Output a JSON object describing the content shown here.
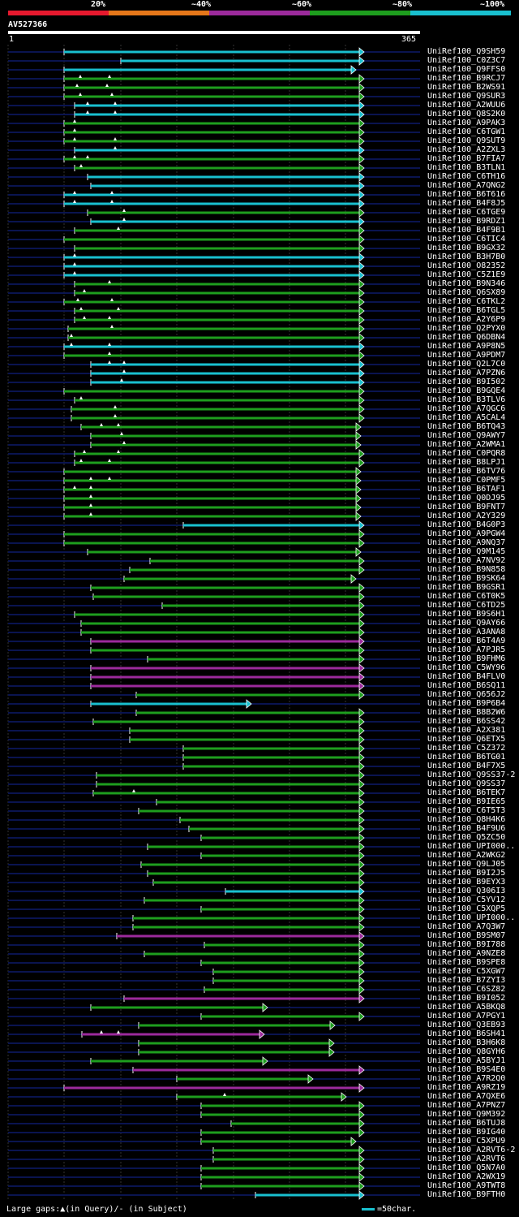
{
  "legend": [
    {
      "label": "20%",
      "color": "#e6192e"
    },
    {
      "label": "~40%",
      "color": "#e5771a"
    },
    {
      "label": "~60%",
      "color": "#9c2a9c"
    },
    {
      "label": "~80%",
      "color": "#1e9e1e"
    },
    {
      "label": "~100%",
      "color": "#19c0cf"
    }
  ],
  "query": {
    "name": "AV527366",
    "start": "1",
    "end": "365",
    "length": 365
  },
  "colors": {
    "cyan": "#19c0cf",
    "green": "#1e9e1e",
    "magenta": "#9c2a9c",
    "track": "#0a1450",
    "grid": "#333"
  },
  "footer": {
    "gaps": "Large gaps:▲(in Query)/- (in Subject)",
    "scale": "=50char."
  },
  "hits": [
    {
      "id": "UniRef100_Q9SH59",
      "start": 79,
      "end": 449,
      "color": "cyan",
      "arrow": true
    },
    {
      "id": "UniRef100_C0Z3C7",
      "start": 149,
      "end": 449,
      "color": "cyan",
      "arrow": true
    },
    {
      "id": "UniRef100_Q9FFS0",
      "start": 79,
      "end": 439,
      "color": "cyan",
      "arrow": true
    },
    {
      "id": "UniRef100_B9RCJ7",
      "start": 79,
      "end": 449,
      "color": "green",
      "arrow": true,
      "marks": [
        99,
        135
      ]
    },
    {
      "id": "UniRef100_B2WS91",
      "start": 79,
      "end": 449,
      "color": "green",
      "arrow": true,
      "marks": [
        95,
        132
      ]
    },
    {
      "id": "UniRef100_Q9SUR3",
      "start": 79,
      "end": 449,
      "color": "green",
      "arrow": true,
      "marks": [
        99,
        138
      ]
    },
    {
      "id": "UniRef100_A2WUU6",
      "start": 92,
      "end": 449,
      "color": "cyan",
      "arrow": true,
      "marks": [
        108,
        142
      ]
    },
    {
      "id": "UniRef100_Q8S2K0",
      "start": 92,
      "end": 449,
      "color": "cyan",
      "arrow": true,
      "marks": [
        108,
        142
      ]
    },
    {
      "id": "UniRef100_A9PAK3",
      "start": 79,
      "end": 449,
      "color": "green",
      "arrow": true,
      "marks": [
        92
      ]
    },
    {
      "id": "UniRef100_C6TGW1",
      "start": 79,
      "end": 449,
      "color": "green",
      "arrow": true,
      "marks": [
        92
      ]
    },
    {
      "id": "UniRef100_Q9SUT9",
      "start": 79,
      "end": 449,
      "color": "green",
      "arrow": true,
      "marks": [
        92,
        142
      ]
    },
    {
      "id": "UniRef100_A2ZXL3",
      "start": 92,
      "end": 449,
      "color": "cyan",
      "arrow": true,
      "marks": [
        142
      ]
    },
    {
      "id": "UniRef100_B7FIA7",
      "start": 79,
      "end": 449,
      "color": "green",
      "arrow": true,
      "marks": [
        92,
        108
      ]
    },
    {
      "id": "UniRef100_B3TLN1",
      "start": 92,
      "end": 449,
      "color": "green",
      "arrow": true,
      "marks": [
        100
      ]
    },
    {
      "id": "UniRef100_C6TH16",
      "start": 108,
      "end": 449,
      "color": "cyan",
      "arrow": true
    },
    {
      "id": "UniRef100_A7QNG2",
      "start": 112,
      "end": 449,
      "color": "cyan",
      "arrow": true
    },
    {
      "id": "UniRef100_B6T616",
      "start": 79,
      "end": 449,
      "color": "cyan",
      "arrow": true,
      "marks": [
        92,
        138
      ]
    },
    {
      "id": "UniRef100_B4F8J5",
      "start": 79,
      "end": 449,
      "color": "cyan",
      "arrow": true,
      "marks": [
        92,
        138
      ]
    },
    {
      "id": "UniRef100_C6TGE9",
      "start": 108,
      "end": 449,
      "color": "green",
      "arrow": true,
      "marks": [
        153
      ]
    },
    {
      "id": "UniRef100_B9RDZ1",
      "start": 112,
      "end": 449,
      "color": "cyan",
      "arrow": true,
      "marks": [
        153
      ]
    },
    {
      "id": "UniRef100_B4F9B1",
      "start": 92,
      "end": 449,
      "color": "green",
      "arrow": true,
      "marks": [
        146
      ]
    },
    {
      "id": "UniRef100_C6TIC4",
      "start": 79,
      "end": 449,
      "color": "green",
      "arrow": true
    },
    {
      "id": "UniRef100_B9GX32",
      "start": 92,
      "end": 449,
      "color": "green",
      "arrow": true
    },
    {
      "id": "UniRef100_B3H7B0",
      "start": 79,
      "end": 449,
      "color": "cyan",
      "arrow": true,
      "marks": [
        92
      ]
    },
    {
      "id": "UniRef100_O82352",
      "start": 79,
      "end": 449,
      "color": "cyan",
      "arrow": true,
      "marks": [
        92
      ]
    },
    {
      "id": "UniRef100_C5Z1E9",
      "start": 79,
      "end": 449,
      "color": "cyan",
      "arrow": true,
      "marks": [
        92
      ]
    },
    {
      "id": "UniRef100_B9N346",
      "start": 92,
      "end": 449,
      "color": "green",
      "arrow": true,
      "marks": [
        135
      ]
    },
    {
      "id": "UniRef100_Q6SX89",
      "start": 92,
      "end": 449,
      "color": "green",
      "arrow": true,
      "marks": [
        104
      ]
    },
    {
      "id": "UniRef100_C6TKL2",
      "start": 79,
      "end": 449,
      "color": "green",
      "arrow": true,
      "marks": [
        96,
        138
      ]
    },
    {
      "id": "UniRef100_B6TGL5",
      "start": 92,
      "end": 449,
      "color": "green",
      "arrow": true,
      "marks": [
        100,
        146
      ]
    },
    {
      "id": "UniRef100_A2Y6P9",
      "start": 92,
      "end": 449,
      "color": "green",
      "arrow": true,
      "marks": [
        104,
        135
      ]
    },
    {
      "id": "UniRef100_Q2PYX0",
      "start": 84,
      "end": 449,
      "color": "green",
      "arrow": true,
      "marks": [
        138
      ]
    },
    {
      "id": "UniRef100_Q6DBN4",
      "start": 84,
      "end": 449,
      "color": "green",
      "arrow": true,
      "marks": [
        88
      ]
    },
    {
      "id": "UniRef100_A9P8N5",
      "start": 79,
      "end": 449,
      "color": "cyan",
      "arrow": true,
      "marks": [
        88,
        135
      ]
    },
    {
      "id": "UniRef100_A9PDM7",
      "start": 79,
      "end": 449,
      "color": "green",
      "arrow": true,
      "marks": [
        135
      ]
    },
    {
      "id": "UniRef100_Q2L7C0",
      "start": 112,
      "end": 449,
      "color": "cyan",
      "arrow": true,
      "marks": [
        135,
        153
      ]
    },
    {
      "id": "UniRef100_A7PZN6",
      "start": 112,
      "end": 449,
      "color": "cyan",
      "arrow": true,
      "marks": [
        153
      ]
    },
    {
      "id": "UniRef100_B9I502",
      "start": 112,
      "end": 449,
      "color": "cyan",
      "arrow": true,
      "marks": [
        150
      ]
    },
    {
      "id": "UniRef100_B9GQE4",
      "start": 79,
      "end": 449,
      "color": "green",
      "arrow": true
    },
    {
      "id": "UniRef100_B3TLV6",
      "start": 92,
      "end": 449,
      "color": "green",
      "arrow": true,
      "marks": [
        100
      ]
    },
    {
      "id": "UniRef100_A7QGC6",
      "start": 88,
      "end": 449,
      "color": "green",
      "arrow": true,
      "marks": [
        142
      ]
    },
    {
      "id": "UniRef100_A5CAL4",
      "start": 88,
      "end": 449,
      "color": "green",
      "arrow": true,
      "marks": [
        142
      ]
    },
    {
      "id": "UniRef100_B6TQ43",
      "start": 100,
      "end": 445,
      "color": "green",
      "arrow": true,
      "marks": [
        125,
        146
      ]
    },
    {
      "id": "UniRef100_Q9AWY7",
      "start": 112,
      "end": 445,
      "color": "green",
      "arrow": true,
      "marks": [
        150
      ]
    },
    {
      "id": "UniRef100_A2WMA1",
      "start": 112,
      "end": 445,
      "color": "green",
      "arrow": true,
      "marks": [
        153
      ]
    },
    {
      "id": "UniRef100_C0PQR8",
      "start": 92,
      "end": 449,
      "color": "green",
      "arrow": true,
      "marks": [
        104,
        146
      ]
    },
    {
      "id": "UniRef100_B8LPJ1",
      "start": 92,
      "end": 449,
      "color": "green",
      "arrow": true,
      "marks": [
        100,
        135
      ]
    },
    {
      "id": "UniRef100_B6TV76",
      "start": 79,
      "end": 445,
      "color": "green",
      "arrow": true
    },
    {
      "id": "UniRef100_C0PMF5",
      "start": 79,
      "end": 445,
      "color": "green",
      "arrow": true,
      "marks": [
        112,
        135
      ]
    },
    {
      "id": "UniRef100_B6TAF1",
      "start": 79,
      "end": 445,
      "color": "green",
      "arrow": true,
      "marks": [
        92,
        112
      ]
    },
    {
      "id": "UniRef100_Q0DJ95",
      "start": 79,
      "end": 445,
      "color": "green",
      "arrow": true,
      "marks": [
        112
      ]
    },
    {
      "id": "UniRef100_B9FNT7",
      "start": 79,
      "end": 445,
      "color": "green",
      "arrow": true,
      "marks": [
        112
      ]
    },
    {
      "id": "UniRef100_A2Y329",
      "start": 79,
      "end": 445,
      "color": "green",
      "arrow": true,
      "marks": [
        112
      ]
    },
    {
      "id": "UniRef100_B4G0P3",
      "start": 226,
      "end": 449,
      "color": "cyan",
      "arrow": true
    },
    {
      "id": "UniRef100_A9PGW4",
      "start": 79,
      "end": 449,
      "color": "green",
      "arrow": true
    },
    {
      "id": "UniRef100_A9NQ37",
      "start": 79,
      "end": 449,
      "color": "green",
      "arrow": true
    },
    {
      "id": "UniRef100_Q9M145",
      "start": 108,
      "end": 445,
      "color": "green",
      "arrow": true
    },
    {
      "id": "UniRef100_A7NV92",
      "start": 185,
      "end": 449,
      "color": "green",
      "arrow": true
    },
    {
      "id": "UniRef100_B9N858",
      "start": 160,
      "end": 449,
      "color": "green",
      "arrow": true
    },
    {
      "id": "UniRef100_B9SK64",
      "start": 153,
      "end": 439,
      "color": "green",
      "arrow": true
    },
    {
      "id": "UniRef100_B9GSR1",
      "start": 112,
      "end": 449,
      "color": "green",
      "arrow": true
    },
    {
      "id": "UniRef100_C6T0K5",
      "start": 115,
      "end": 449,
      "color": "green",
      "arrow": true
    },
    {
      "id": "UniRef100_C6TD25",
      "start": 200,
      "end": 449,
      "color": "green",
      "arrow": true
    },
    {
      "id": "UniRef100_B9S6H1",
      "start": 92,
      "end": 449,
      "color": "green",
      "arrow": true
    },
    {
      "id": "UniRef100_Q9AY66",
      "start": 100,
      "end": 449,
      "color": "green",
      "arrow": true
    },
    {
      "id": "UniRef100_A3ANA8",
      "start": 100,
      "end": 449,
      "color": "green",
      "arrow": true
    },
    {
      "id": "UniRef100_B6T4A9",
      "start": 112,
      "end": 449,
      "color": "magenta",
      "arrow": true
    },
    {
      "id": "UniRef100_A7PJR5",
      "start": 112,
      "end": 449,
      "color": "green",
      "arrow": true
    },
    {
      "id": "UniRef100_B9FHM6",
      "start": 182,
      "end": 449,
      "color": "green",
      "arrow": true
    },
    {
      "id": "UniRef100_C5WY96",
      "start": 112,
      "end": 449,
      "color": "magenta",
      "arrow": true
    },
    {
      "id": "UniRef100_B4FLV0",
      "start": 112,
      "end": 449,
      "color": "magenta",
      "arrow": true
    },
    {
      "id": "UniRef100_B6SQ11",
      "start": 112,
      "end": 449,
      "color": "magenta",
      "arrow": true
    },
    {
      "id": "UniRef100_Q656J2",
      "start": 168,
      "end": 449,
      "color": "green",
      "arrow": true
    },
    {
      "id": "UniRef100_B9P6B4",
      "start": 112,
      "end": 310,
      "color": "cyan",
      "arrow": true
    },
    {
      "id": "UniRef100_B8B2W6",
      "start": 168,
      "end": 449,
      "color": "green",
      "arrow": true
    },
    {
      "id": "UniRef100_B6SS42",
      "start": 115,
      "end": 449,
      "color": "green",
      "arrow": true
    },
    {
      "id": "UniRef100_A2X381",
      "start": 160,
      "end": 449,
      "color": "green",
      "arrow": true
    },
    {
      "id": "UniRef100_Q6ETX5",
      "start": 160,
      "end": 449,
      "color": "green",
      "arrow": true
    },
    {
      "id": "UniRef100_C5Z372",
      "start": 226,
      "end": 449,
      "color": "green",
      "arrow": true
    },
    {
      "id": "UniRef100_B6TG01",
      "start": 226,
      "end": 449,
      "color": "green",
      "arrow": true
    },
    {
      "id": "UniRef100_B4F7X5",
      "start": 226,
      "end": 449,
      "color": "green",
      "arrow": true
    },
    {
      "id": "UniRef100_Q9SS37-2",
      "start": 119,
      "end": 449,
      "color": "green",
      "arrow": true
    },
    {
      "id": "UniRef100_Q9SS37",
      "start": 119,
      "end": 449,
      "color": "green",
      "arrow": true
    },
    {
      "id": "UniRef100_B6TEK7",
      "start": 115,
      "end": 449,
      "color": "green",
      "arrow": true,
      "marks": [
        165
      ]
    },
    {
      "id": "UniRef100_B9IE65",
      "start": 193,
      "end": 449,
      "color": "green",
      "arrow": true
    },
    {
      "id": "UniRef100_C6T5T3",
      "start": 171,
      "end": 449,
      "color": "green",
      "arrow": true
    },
    {
      "id": "UniRef100_Q8H4K6",
      "start": 222,
      "end": 449,
      "color": "green",
      "arrow": true
    },
    {
      "id": "UniRef100_B4F9U6",
      "start": 233,
      "end": 449,
      "color": "green",
      "arrow": true
    },
    {
      "id": "UniRef100_Q5ZC50",
      "start": 248,
      "end": 449,
      "color": "green",
      "arrow": true
    },
    {
      "id": "UniRef100_UPI000..",
      "start": 182,
      "end": 449,
      "color": "green",
      "arrow": true
    },
    {
      "id": "UniRef100_A2WKG2",
      "start": 248,
      "end": 449,
      "color": "green",
      "arrow": true
    },
    {
      "id": "UniRef100_Q9LJ05",
      "start": 174,
      "end": 449,
      "color": "green",
      "arrow": true
    },
    {
      "id": "UniRef100_B9I2J5",
      "start": 182,
      "end": 449,
      "color": "green",
      "arrow": true
    },
    {
      "id": "UniRef100_B9EYX3",
      "start": 189,
      "end": 449,
      "color": "green",
      "arrow": true
    },
    {
      "id": "UniRef100_Q306I3",
      "start": 278,
      "end": 449,
      "color": "cyan",
      "arrow": true
    },
    {
      "id": "UniRef100_C5YV12",
      "start": 178,
      "end": 449,
      "color": "green",
      "arrow": true
    },
    {
      "id": "UniRef100_C5XQP5",
      "start": 248,
      "end": 449,
      "color": "green",
      "arrow": true
    },
    {
      "id": "UniRef100_UPI000..",
      "start": 164,
      "end": 449,
      "color": "green",
      "arrow": true
    },
    {
      "id": "UniRef100_A7Q3W7",
      "start": 164,
      "end": 449,
      "color": "green",
      "arrow": true
    },
    {
      "id": "UniRef100_B9SM07",
      "start": 144,
      "end": 449,
      "color": "magenta",
      "arrow": true
    },
    {
      "id": "UniRef100_B9I788",
      "start": 252,
      "end": 449,
      "color": "green",
      "arrow": true
    },
    {
      "id": "UniRef100_A9NZE8",
      "start": 178,
      "end": 449,
      "color": "green",
      "arrow": true
    },
    {
      "id": "UniRef100_B9SPE8",
      "start": 248,
      "end": 449,
      "color": "green",
      "arrow": true
    },
    {
      "id": "UniRef100_C5XGW7",
      "start": 263,
      "end": 449,
      "color": "green",
      "arrow": true
    },
    {
      "id": "UniRef100_B7ZYI3",
      "start": 263,
      "end": 449,
      "color": "green",
      "arrow": true
    },
    {
      "id": "UniRef100_C6SZ82",
      "start": 252,
      "end": 449,
      "color": "green",
      "arrow": true
    },
    {
      "id": "UniRef100_B9I052",
      "start": 153,
      "end": 449,
      "color": "magenta",
      "arrow": true
    },
    {
      "id": "UniRef100_A5BKQ8",
      "start": 112,
      "end": 330,
      "color": "green",
      "arrow": true
    },
    {
      "id": "UniRef100_A7PGY1",
      "start": 248,
      "end": 449,
      "color": "green",
      "arrow": true
    },
    {
      "id": "UniRef100_Q3EB93",
      "start": 171,
      "end": 413,
      "color": "green",
      "arrow": true
    },
    {
      "id": "UniRef100_B6SH41",
      "start": 101,
      "end": 326,
      "color": "magenta",
      "arrow": true,
      "marks": [
        125,
        146
      ]
    },
    {
      "id": "UniRef100_B3H6K8",
      "start": 171,
      "end": 412,
      "color": "green",
      "arrow": true
    },
    {
      "id": "UniRef100_Q8GYH6",
      "start": 171,
      "end": 412,
      "color": "green",
      "arrow": true
    },
    {
      "id": "UniRef100_A5BYJ1",
      "start": 112,
      "end": 330,
      "color": "green",
      "arrow": true
    },
    {
      "id": "UniRef100_B9S4E0",
      "start": 164,
      "end": 449,
      "color": "magenta",
      "arrow": true
    },
    {
      "id": "UniRef100_A7R2Q0",
      "start": 218,
      "end": 386,
      "color": "green",
      "arrow": true
    },
    {
      "id": "UniRef100_A9RZ19",
      "start": 79,
      "end": 449,
      "color": "magenta",
      "arrow": true
    },
    {
      "id": "UniRef100_A7QXE6",
      "start": 218,
      "end": 427,
      "color": "green",
      "arrow": true,
      "marks": [
        277
      ]
    },
    {
      "id": "UniRef100_A7PNZ7",
      "start": 248,
      "end": 449,
      "color": "green",
      "arrow": true
    },
    {
      "id": "UniRef100_Q9M392",
      "start": 248,
      "end": 449,
      "color": "green",
      "arrow": true
    },
    {
      "id": "UniRef100_B6TUJ8",
      "start": 285,
      "end": 449,
      "color": "green",
      "arrow": true
    },
    {
      "id": "UniRef100_B9IG40",
      "start": 248,
      "end": 449,
      "color": "green",
      "arrow": true
    },
    {
      "id": "UniRef100_C5XPU9",
      "start": 248,
      "end": 439,
      "color": "green",
      "arrow": true
    },
    {
      "id": "UniRef100_A2RVT6-2",
      "start": 263,
      "end": 449,
      "color": "green",
      "arrow": true
    },
    {
      "id": "UniRef100_A2RVT6",
      "start": 263,
      "end": 449,
      "color": "green",
      "arrow": true
    },
    {
      "id": "UniRef100_Q5N7A0",
      "start": 248,
      "end": 449,
      "color": "green",
      "arrow": true
    },
    {
      "id": "UniRef100_A2WX19",
      "start": 248,
      "end": 449,
      "color": "green",
      "arrow": true
    },
    {
      "id": "UniRef100_A9TWT8",
      "start": 248,
      "end": 449,
      "color": "green",
      "arrow": true
    },
    {
      "id": "UniRef100_B9FTH0",
      "start": 315,
      "end": 449,
      "color": "cyan",
      "arrow": true
    }
  ]
}
